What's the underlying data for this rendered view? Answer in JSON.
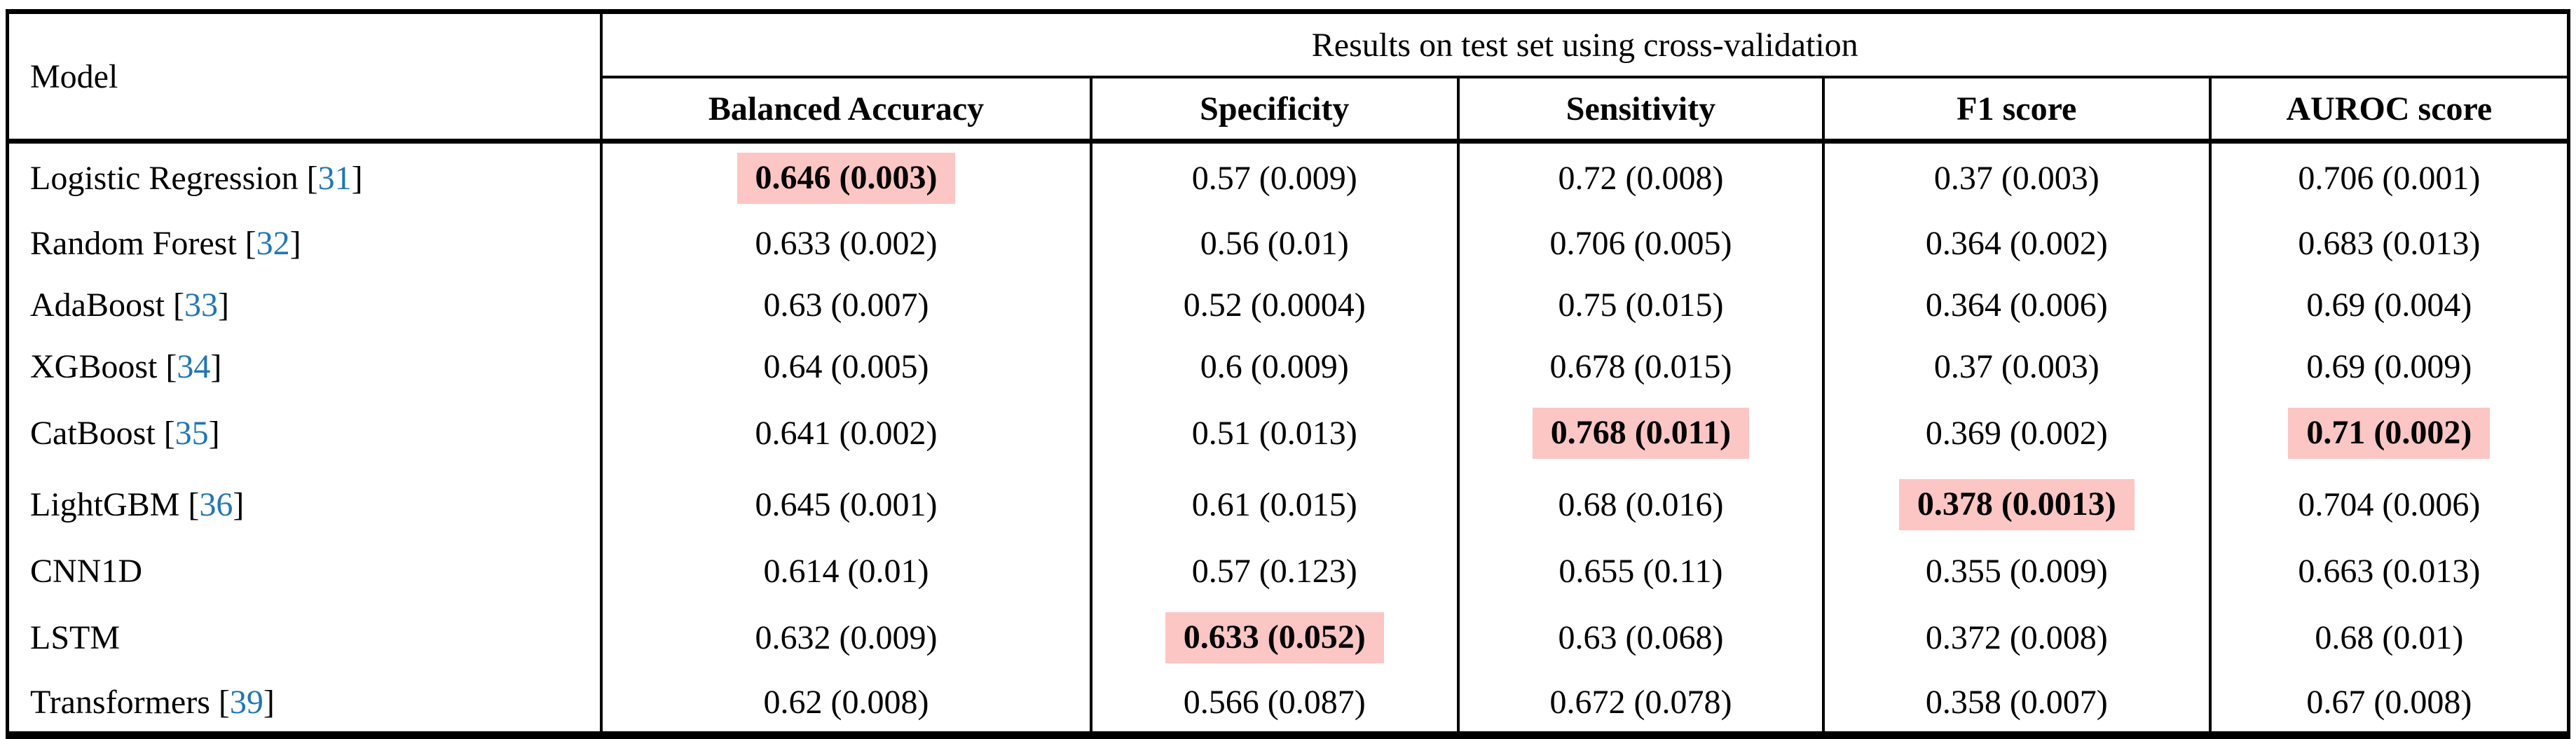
{
  "table": {
    "model_header": "Model",
    "results_header": "Results on test set using cross-validation",
    "metric_columns": [
      "Balanced Accuracy",
      "Specificity",
      "Sensitivity",
      "F1 score",
      "AUROC score"
    ],
    "cite_open": "[",
    "cite_close": "]",
    "rows": [
      {
        "model": "Logistic Regression",
        "citation": "31",
        "cells": [
          {
            "value": "0.646 (0.003)",
            "highlight": true
          },
          {
            "value": "0.57 (0.009)"
          },
          {
            "value": "0.72 (0.008)"
          },
          {
            "value": "0.37 (0.003)"
          },
          {
            "value": "0.706 (0.001)"
          }
        ]
      },
      {
        "model": "Random Forest",
        "citation": "32",
        "cells": [
          {
            "value": "0.633 (0.002)"
          },
          {
            "value": "0.56 (0.01)"
          },
          {
            "value": "0.706 (0.005)"
          },
          {
            "value": "0.364 (0.002)"
          },
          {
            "value": "0.683 (0.013)"
          }
        ]
      },
      {
        "model": "AdaBoost",
        "citation": "33",
        "cells": [
          {
            "value": "0.63 (0.007)"
          },
          {
            "value": "0.52 (0.0004)"
          },
          {
            "value": "0.75 (0.015)"
          },
          {
            "value": "0.364 (0.006)"
          },
          {
            "value": "0.69 (0.004)"
          }
        ]
      },
      {
        "model": "XGBoost",
        "citation": "34",
        "cells": [
          {
            "value": "0.64 (0.005)"
          },
          {
            "value": "0.6 (0.009)"
          },
          {
            "value": "0.678 (0.015)"
          },
          {
            "value": "0.37 (0.003)"
          },
          {
            "value": "0.69 (0.009)"
          }
        ]
      },
      {
        "model": "CatBoost",
        "citation": "35",
        "cells": [
          {
            "value": "0.641 (0.002)"
          },
          {
            "value": "0.51 (0.013)"
          },
          {
            "value": "0.768 (0.011)",
            "highlight": true
          },
          {
            "value": "0.369 (0.002)"
          },
          {
            "value": "0.71 (0.002)",
            "highlight": true
          }
        ]
      },
      {
        "model": "LightGBM",
        "citation": "36",
        "cells": [
          {
            "value": "0.645 (0.001)"
          },
          {
            "value": "0.61 (0.015)"
          },
          {
            "value": "0.68 (0.016)"
          },
          {
            "value": "0.378 (0.0013)",
            "highlight": true
          },
          {
            "value": "0.704 (0.006)"
          }
        ]
      },
      {
        "model": "CNN1D",
        "citation": null,
        "cells": [
          {
            "value": "0.614 (0.01)"
          },
          {
            "value": "0.57 (0.123)"
          },
          {
            "value": "0.655 (0.11)"
          },
          {
            "value": "0.355 (0.009)"
          },
          {
            "value": "0.663 (0.013)"
          }
        ]
      },
      {
        "model": "LSTM",
        "citation": null,
        "cells": [
          {
            "value": "0.632 (0.009)"
          },
          {
            "value": "0.633 (0.052)",
            "highlight": true
          },
          {
            "value": "0.63 (0.068)"
          },
          {
            "value": "0.372 (0.008)"
          },
          {
            "value": "0.68 (0.01)"
          }
        ]
      },
      {
        "model": "Transformers",
        "citation": "39",
        "cells": [
          {
            "value": "0.62 (0.008)"
          },
          {
            "value": "0.566 (0.087)"
          },
          {
            "value": "0.672 (0.078)"
          },
          {
            "value": "0.358 (0.007)"
          },
          {
            "value": "0.67 (0.008)"
          }
        ]
      }
    ]
  },
  "colors": {
    "highlight": "#fcc6c4",
    "citation": "#2077b5"
  }
}
